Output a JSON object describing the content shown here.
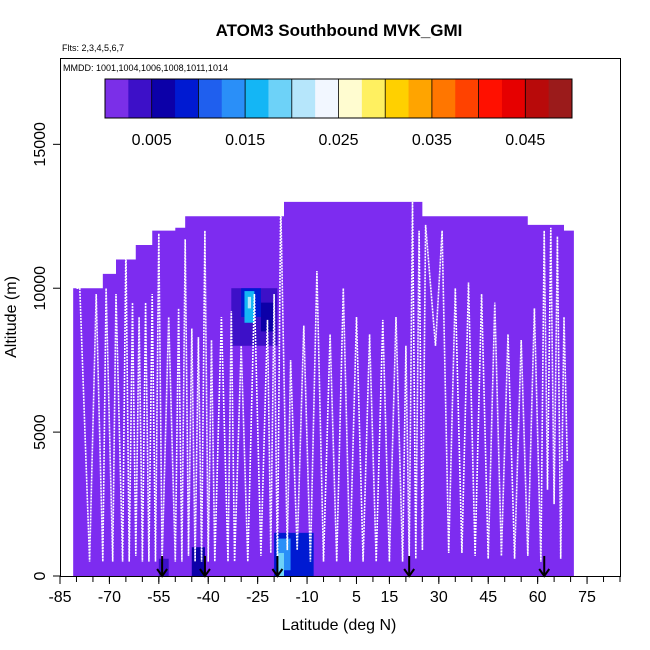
{
  "chart_data": {
    "type": "heatmap",
    "title": "ATOM3 Southbound MVK_GMI",
    "note_flights": "Flts: 2,3,4,5,6,7",
    "note_dates": "MMDD: 1001,1004,1006,1008,1011,1014",
    "xlabel": "Latitude (deg N)",
    "ylabel": "Altitude (m)",
    "xlim": [
      -85,
      85
    ],
    "ylim": [
      0,
      18000
    ],
    "x_ticks": [
      -85,
      -70,
      -55,
      -40,
      -25,
      -10,
      5,
      15,
      30,
      45,
      60,
      75
    ],
    "x_tick_labels": [
      "-85",
      "-70",
      "-55",
      "-40",
      "-25",
      "-10",
      "5",
      "15",
      "30",
      "45",
      "60",
      "75"
    ],
    "y_ticks": [
      0,
      5000,
      10000,
      15000
    ],
    "y_tick_labels": [
      "0",
      "5000",
      "10000",
      "15000"
    ],
    "colorbar": {
      "min": 0,
      "max": 0.05,
      "tick_values": [
        0.005,
        0.015,
        0.025,
        0.035,
        0.045
      ],
      "tick_labels": [
        "0.005",
        "0.015",
        "0.025",
        "0.035",
        "0.045"
      ],
      "colors": [
        "#7b2fe8",
        "#3d10c8",
        "#0c00a8",
        "#001ad2",
        "#1f5fee",
        "#2a8ff8",
        "#14b6f5",
        "#6dd2f8",
        "#b6e6fb",
        "#f2f7ff",
        "#fffcd0",
        "#fff060",
        "#ffd000",
        "#ffa400",
        "#ff7600",
        "#ff4200",
        "#ff1000",
        "#e60000",
        "#b80a0a",
        "#9b1b1b"
      ]
    },
    "background_value": 0.0015,
    "background_color": "#7d2cf0",
    "curtain_boundary": {
      "lat": [
        -81,
        -81,
        -75,
        -72,
        -68,
        -62,
        -57,
        -50,
        -47,
        -43,
        -38,
        -27,
        -20,
        -17,
        -5,
        10,
        22,
        25,
        38,
        52,
        57,
        68,
        71,
        71
      ],
      "alt": [
        8000,
        10000,
        10000,
        10500,
        11000,
        11500,
        12000,
        12100,
        12500,
        12500,
        12500,
        12500,
        12500,
        13000,
        13000,
        13000,
        13000,
        12500,
        12500,
        12500,
        12200,
        12000,
        11600,
        0
      ]
    },
    "cells": [
      {
        "lat": [
          -33,
          -19
        ],
        "alt": [
          8000,
          10000
        ],
        "value": 0.005
      },
      {
        "lat": [
          -30,
          -24
        ],
        "alt": [
          9000,
          10000
        ],
        "value": 0.009
      },
      {
        "lat": [
          -29,
          -26
        ],
        "alt": [
          8800,
          9900
        ],
        "value": 0.017
      },
      {
        "lat": [
          -28,
          -27
        ],
        "alt": [
          9300,
          9700
        ],
        "value": 0.022
      },
      {
        "lat": [
          -24,
          -20
        ],
        "alt": [
          8500,
          9500
        ],
        "value": 0.007
      },
      {
        "lat": [
          -20,
          -8
        ],
        "alt": [
          0,
          1500
        ],
        "value": 0.008
      },
      {
        "lat": [
          -19,
          -15
        ],
        "alt": [
          200,
          1300
        ],
        "value": 0.014
      },
      {
        "lat": [
          -19,
          -17
        ],
        "alt": [
          0,
          800
        ],
        "value": 0.018
      },
      {
        "lat": [
          -45,
          -41
        ],
        "alt": [
          0,
          1000
        ],
        "value": 0.006
      },
      {
        "lat": [
          -55,
          -52
        ],
        "alt": [
          0,
          600
        ],
        "value": 0.004
      }
    ],
    "flight_track": {
      "lat": [
        -80,
        -79,
        -76,
        -74,
        -72,
        -71,
        -69,
        -68,
        -66,
        -65,
        -64,
        -63,
        -62,
        -61,
        -60,
        -59,
        -58,
        -57,
        -56,
        -55,
        -54,
        -52,
        -50,
        -49,
        -48,
        -47,
        -46,
        -45,
        -44,
        -43,
        -42,
        -41,
        -40,
        -39,
        -38,
        -36,
        -34,
        -33,
        -32,
        -30,
        -28,
        -26,
        -24,
        -22,
        -21,
        -20,
        -19,
        -18,
        -16,
        -15,
        -13,
        -11,
        -9,
        -7,
        -5,
        -3,
        -1,
        1,
        3,
        5,
        7,
        9,
        11,
        13,
        15,
        17,
        19,
        20,
        21,
        22,
        23,
        24,
        25,
        26,
        29,
        31,
        33,
        35,
        37,
        39,
        41,
        43,
        45,
        47,
        49,
        51,
        53,
        55,
        57,
        59,
        61,
        62,
        63,
        64,
        65,
        66,
        67,
        68,
        69
      ],
      "alt": [
        10000,
        10000,
        500,
        9800,
        500,
        10000,
        500,
        9800,
        500,
        11500,
        500,
        9500,
        700,
        9000,
        500,
        9500,
        500,
        9800,
        500,
        11900,
        500,
        9000,
        500,
        9300,
        500,
        11700,
        700,
        8600,
        500,
        8300,
        500,
        12000,
        500,
        8200,
        500,
        9000,
        500,
        9200,
        500,
        8000,
        500,
        9800,
        700,
        8900,
        800,
        9800,
        300,
        13000,
        900,
        7500,
        900,
        8700,
        500,
        10600,
        500,
        8400,
        500,
        10000,
        500,
        9000,
        500,
        8400,
        500,
        8900,
        500,
        9000,
        500,
        8000,
        600,
        13000,
        600,
        12000,
        900,
        12200,
        8000,
        12000,
        800,
        10000,
        800,
        10200,
        700,
        9800,
        600,
        9500,
        700,
        8400,
        600,
        8200,
        700,
        9300,
        500,
        12000,
        3000,
        12100,
        2500,
        11800,
        600,
        9000,
        4000
      ]
    },
    "arrows_lat": [
      -54,
      -41,
      -19,
      21,
      62
    ]
  }
}
